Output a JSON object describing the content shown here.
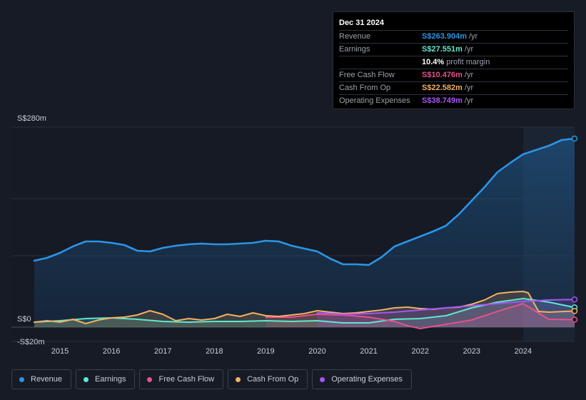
{
  "tooltip": {
    "date": "Dec 31 2024",
    "rows": [
      {
        "label": "Revenue",
        "value": "S$263.904m",
        "unit": "/yr",
        "color": "#2b94e5"
      },
      {
        "label": "Earnings",
        "value": "S$27.551m",
        "unit": "/yr",
        "color": "#5ee8cf"
      },
      {
        "label": "",
        "value": "10.4%",
        "unit": "profit margin",
        "color": "#ffffff"
      },
      {
        "label": "Free Cash Flow",
        "value": "S$10.476m",
        "unit": "/yr",
        "color": "#e5508e"
      },
      {
        "label": "Cash From Op",
        "value": "S$22.582m",
        "unit": "/yr",
        "color": "#f2b063"
      },
      {
        "label": "Operating Expenses",
        "value": "S$38.749m",
        "unit": "/yr",
        "color": "#a855f7"
      }
    ]
  },
  "chart_data": {
    "type": "area",
    "ylim": [
      -20,
      280
    ],
    "y_tick_labels": [
      {
        "value": 280,
        "label": "S$280m"
      },
      {
        "value": 0,
        "label": "S$0"
      },
      {
        "value": -20,
        "label": "-S$20m"
      }
    ],
    "x_tick_labels": [
      "2015",
      "2016",
      "2017",
      "2018",
      "2019",
      "2020",
      "2021",
      "2022",
      "2023",
      "2024"
    ],
    "x_ticks": [
      2015,
      2016,
      2017,
      2018,
      2019,
      2020,
      2021,
      2022,
      2023,
      2024
    ],
    "xlim": [
      2014.5,
      2025.0
    ],
    "highlight_start": 2024.0,
    "grid": true,
    "legend_position": "bottom-left",
    "series": [
      {
        "name": "Revenue",
        "color": "#2b94e5",
        "points": [
          [
            2014.5,
            93
          ],
          [
            2014.75,
            97
          ],
          [
            2015,
            104
          ],
          [
            2015.25,
            113
          ],
          [
            2015.5,
            120
          ],
          [
            2015.75,
            120
          ],
          [
            2016,
            118
          ],
          [
            2016.25,
            115
          ],
          [
            2016.5,
            107
          ],
          [
            2016.75,
            106
          ],
          [
            2017,
            111
          ],
          [
            2017.25,
            114
          ],
          [
            2017.5,
            116
          ],
          [
            2017.75,
            117
          ],
          [
            2018,
            116
          ],
          [
            2018.25,
            116
          ],
          [
            2018.5,
            117
          ],
          [
            2018.75,
            118
          ],
          [
            2019,
            121
          ],
          [
            2019.25,
            120
          ],
          [
            2019.5,
            114
          ],
          [
            2019.75,
            110
          ],
          [
            2020,
            106
          ],
          [
            2020.25,
            96
          ],
          [
            2020.5,
            88
          ],
          [
            2020.75,
            88
          ],
          [
            2021,
            87
          ],
          [
            2021.25,
            98
          ],
          [
            2021.5,
            113
          ],
          [
            2021.75,
            120
          ],
          [
            2022,
            127
          ],
          [
            2022.25,
            134
          ],
          [
            2022.5,
            142
          ],
          [
            2022.75,
            158
          ],
          [
            2023,
            177
          ],
          [
            2023.25,
            196
          ],
          [
            2023.5,
            217
          ],
          [
            2023.75,
            230
          ],
          [
            2024,
            242
          ],
          [
            2024.25,
            248
          ],
          [
            2024.5,
            254
          ],
          [
            2024.75,
            262
          ],
          [
            2025,
            264
          ]
        ]
      },
      {
        "name": "Earnings",
        "color": "#5ee8cf",
        "points": [
          [
            2014.5,
            7
          ],
          [
            2015,
            9
          ],
          [
            2015.5,
            12
          ],
          [
            2016,
            13
          ],
          [
            2016.5,
            11
          ],
          [
            2017,
            8
          ],
          [
            2017.5,
            7
          ],
          [
            2018,
            8
          ],
          [
            2018.5,
            8
          ],
          [
            2019,
            9
          ],
          [
            2019.5,
            8
          ],
          [
            2020,
            9
          ],
          [
            2020.5,
            6
          ],
          [
            2021,
            6
          ],
          [
            2021.5,
            11
          ],
          [
            2022,
            12
          ],
          [
            2022.5,
            16
          ],
          [
            2023,
            27
          ],
          [
            2023.5,
            35
          ],
          [
            2024,
            40
          ],
          [
            2024.5,
            35
          ],
          [
            2025,
            27.6
          ]
        ]
      },
      {
        "name": "Free Cash Flow",
        "color": "#e5508e",
        "points": [
          [
            2019,
            14
          ],
          [
            2019.5,
            14
          ],
          [
            2020,
            18
          ],
          [
            2020.5,
            17
          ],
          [
            2021,
            14
          ],
          [
            2021.5,
            8
          ],
          [
            2021.75,
            2
          ],
          [
            2022,
            -2
          ],
          [
            2022.25,
            1
          ],
          [
            2022.5,
            4
          ],
          [
            2023,
            10
          ],
          [
            2023.5,
            22
          ],
          [
            2024,
            33
          ],
          [
            2024.25,
            22
          ],
          [
            2024.5,
            11
          ],
          [
            2025,
            10.5
          ]
        ]
      },
      {
        "name": "Cash From Op",
        "color": "#f2b063",
        "points": [
          [
            2014.5,
            7
          ],
          [
            2014.75,
            9
          ],
          [
            2015,
            7
          ],
          [
            2015.25,
            11
          ],
          [
            2015.5,
            5
          ],
          [
            2015.75,
            10
          ],
          [
            2016,
            13
          ],
          [
            2016.25,
            14
          ],
          [
            2016.5,
            17
          ],
          [
            2016.75,
            23
          ],
          [
            2017,
            18
          ],
          [
            2017.25,
            9
          ],
          [
            2017.5,
            12
          ],
          [
            2017.75,
            10
          ],
          [
            2018,
            12
          ],
          [
            2018.25,
            18
          ],
          [
            2018.5,
            15
          ],
          [
            2018.75,
            20
          ],
          [
            2019,
            16
          ],
          [
            2019.25,
            15
          ],
          [
            2019.5,
            17
          ],
          [
            2019.75,
            19
          ],
          [
            2020,
            23
          ],
          [
            2020.25,
            21
          ],
          [
            2020.5,
            19
          ],
          [
            2020.75,
            20
          ],
          [
            2021,
            22
          ],
          [
            2021.25,
            24
          ],
          [
            2021.5,
            27
          ],
          [
            2021.75,
            28
          ],
          [
            2022,
            26
          ],
          [
            2022.25,
            25
          ],
          [
            2022.5,
            27
          ],
          [
            2022.75,
            28
          ],
          [
            2023,
            32
          ],
          [
            2023.25,
            38
          ],
          [
            2023.5,
            47
          ],
          [
            2023.75,
            49
          ],
          [
            2024,
            50
          ],
          [
            2024.1,
            48
          ],
          [
            2024.3,
            22
          ],
          [
            2024.5,
            21
          ],
          [
            2025,
            22.6
          ]
        ]
      },
      {
        "name": "Operating Expenses",
        "color": "#a855f7",
        "points": [
          [
            2020,
            20
          ],
          [
            2020.5,
            18
          ],
          [
            2021,
            19
          ],
          [
            2021.5,
            21
          ],
          [
            2022,
            24
          ],
          [
            2022.5,
            27
          ],
          [
            2023,
            30
          ],
          [
            2023.5,
            33
          ],
          [
            2024,
            36
          ],
          [
            2024.5,
            38
          ],
          [
            2025,
            38.7
          ]
        ]
      }
    ]
  },
  "legend": [
    {
      "label": "Revenue",
      "color": "#2b94e5"
    },
    {
      "label": "Earnings",
      "color": "#5ee8cf"
    },
    {
      "label": "Free Cash Flow",
      "color": "#e5508e"
    },
    {
      "label": "Cash From Op",
      "color": "#f2b063"
    },
    {
      "label": "Operating Expenses",
      "color": "#a855f7"
    }
  ]
}
